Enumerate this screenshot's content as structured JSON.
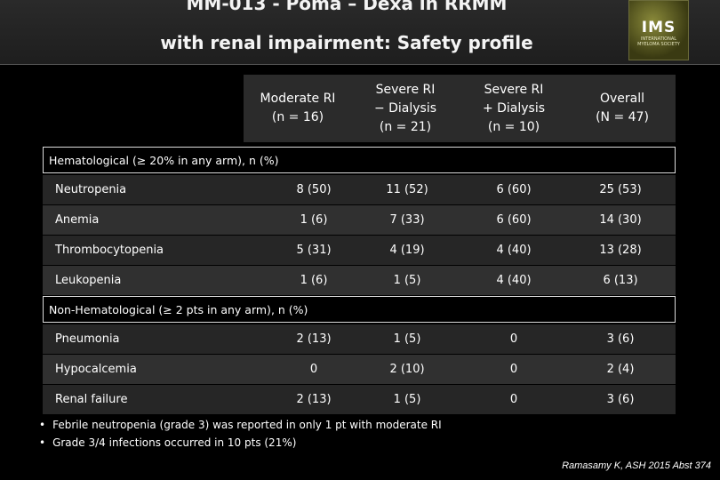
{
  "header": {
    "title_line1": "MM-013 - Poma – Dexa in RRMM",
    "title_line2": "with renal impairment: Safety profile",
    "logo_text": "IMS",
    "logo_sub": "INTERNATIONAL MYELOMA SOCIETY"
  },
  "table": {
    "columns": [
      {
        "line1": "Moderate RI",
        "line2": "(n = 16)",
        "line3": ""
      },
      {
        "line1": "Severe RI",
        "line2": "− Dialysis",
        "line3": "(n = 21)"
      },
      {
        "line1": "Severe RI",
        "line2": "+ Dialysis",
        "line3": "(n = 10)"
      },
      {
        "line1": "Overall",
        "line2": "(N = 47)",
        "line3": ""
      }
    ],
    "sections": [
      {
        "title": "Hematological (≥ 20% in any arm), n (%)",
        "rows": [
          {
            "label": "Neutropenia",
            "values": [
              "8 (50)",
              "11 (52)",
              "6 (60)",
              "25 (53)"
            ]
          },
          {
            "label": "Anemia",
            "values": [
              "1 (6)",
              "7 (33)",
              "6 (60)",
              "14 (30)"
            ]
          },
          {
            "label": "Thrombocytopenia",
            "values": [
              "5 (31)",
              "4 (19)",
              "4 (40)",
              "13 (28)"
            ]
          },
          {
            "label": "Leukopenia",
            "values": [
              "1 (6)",
              "1 (5)",
              "4 (40)",
              "6 (13)"
            ]
          }
        ]
      },
      {
        "title": "Non-Hematological (≥ 2 pts in any arm), n (%)",
        "rows": [
          {
            "label": "Pneumonia",
            "values": [
              "2 (13)",
              "1 (5)",
              "0",
              "3 (6)"
            ]
          },
          {
            "label": "Hypocalcemia",
            "values": [
              "0",
              "2 (10)",
              "0",
              "2 (4)"
            ]
          },
          {
            "label": "Renal failure",
            "values": [
              "2 (13)",
              "1 (5)",
              "0",
              "3 (6)"
            ]
          }
        ]
      }
    ]
  },
  "notes": [
    "Febrile neutropenia (grade 3) was reported in only 1 pt with moderate RI",
    "Grade 3/4 infections occurred in 10 pts (21%)"
  ],
  "citation": "Ramasamy K, ASH 2015 Abst 374"
}
